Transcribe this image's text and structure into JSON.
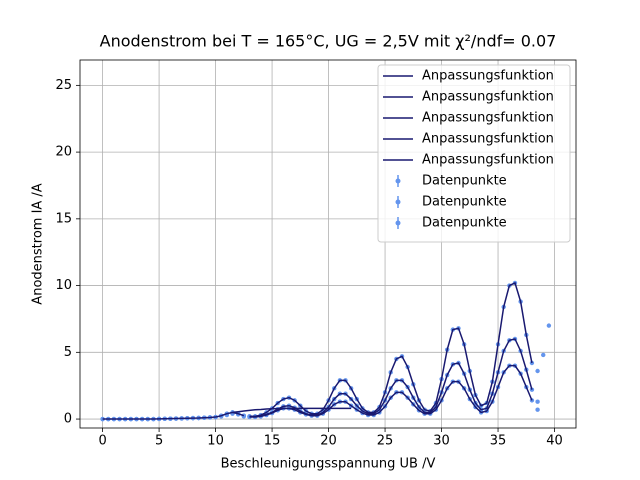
{
  "chart_data": {
    "type": "line",
    "title": "Anodenstrom bei T = 165°C, UG = 2,5V mit χ²/ndf= 0.07",
    "x_label": "Beschleunigungsspannung UB /V",
    "y_label": "Anodenstrom IA /A",
    "xlim": [
      -2.0,
      41.9
    ],
    "ylim": [
      -0.67,
      26.9
    ],
    "xticks": [
      0,
      5,
      10,
      15,
      20,
      25,
      30,
      35,
      40
    ],
    "yticks": [
      0,
      5,
      10,
      15,
      20,
      25
    ],
    "grid": true,
    "legend": "upper right",
    "x": [
      0,
      0.5,
      1,
      1.5,
      2,
      2.5,
      3,
      3.5,
      4,
      4.5,
      5,
      5.5,
      6,
      6.5,
      7,
      7.5,
      8,
      8.5,
      9,
      9.5,
      10,
      10.5,
      11,
      11.5,
      12,
      12.5,
      13,
      13.5,
      14,
      14.5,
      15,
      15.5,
      16,
      16.5,
      17,
      17.5,
      18,
      18.5,
      19,
      19.5,
      20,
      20.5,
      21,
      21.5,
      22,
      22.5,
      23,
      23.5,
      24,
      24.5,
      25,
      25.5,
      26,
      26.5,
      27,
      27.5,
      28,
      28.5,
      29,
      29.5,
      30,
      30.5,
      31,
      31.5,
      32,
      32.5,
      33,
      33.5,
      34,
      34.5,
      35,
      35.5,
      36,
      36.5,
      37,
      37.5,
      38,
      38.5,
      39,
      39.5
    ],
    "series": [
      {
        "name": "Anpassungsfunktion",
        "type": "line",
        "color": "#191970",
        "values": [
          null,
          null,
          null,
          null,
          null,
          null,
          null,
          null,
          null,
          null,
          null,
          null,
          null,
          null,
          null,
          null,
          null,
          null,
          null,
          null,
          null,
          null,
          null,
          null,
          null,
          null,
          0.2,
          0.2,
          0.3,
          0.5,
          0.8,
          1.2,
          1.5,
          1.6,
          1.4,
          1.0,
          0.6,
          0.4,
          0.4,
          0.7,
          1.4,
          2.3,
          2.9,
          2.9,
          2.3,
          1.5,
          0.8,
          0.5,
          0.5,
          0.9,
          2.0,
          3.5,
          4.5,
          4.7,
          3.9,
          2.6,
          1.4,
          0.7,
          0.6,
          1.2,
          3.0,
          5.2,
          6.7,
          6.8,
          5.6,
          3.6,
          1.8,
          1.0,
          1.2,
          2.8,
          5.6,
          8.4,
          10.0,
          10.2,
          8.8,
          6.3,
          4.2,
          null,
          null,
          null
        ]
      },
      {
        "name": "Anpassungsfunktion",
        "type": "line",
        "color": "#191970",
        "values": [
          null,
          null,
          null,
          null,
          null,
          null,
          null,
          null,
          null,
          null,
          null,
          null,
          null,
          null,
          null,
          null,
          null,
          null,
          null,
          null,
          null,
          null,
          null,
          null,
          null,
          null,
          0.2,
          0.2,
          0.25,
          0.35,
          0.5,
          0.75,
          0.95,
          1.0,
          0.85,
          0.6,
          0.4,
          0.3,
          0.3,
          0.5,
          0.9,
          1.5,
          1.9,
          1.9,
          1.5,
          1.0,
          0.6,
          0.4,
          0.4,
          0.7,
          1.4,
          2.3,
          2.9,
          2.9,
          2.4,
          1.6,
          0.9,
          0.5,
          0.5,
          0.9,
          2.0,
          3.3,
          4.1,
          4.2,
          3.4,
          2.2,
          1.2,
          0.7,
          0.8,
          1.9,
          3.5,
          5.1,
          5.9,
          6.0,
          5.1,
          3.7,
          2.2,
          null,
          null,
          null
        ]
      },
      {
        "name": "Anpassungsfunktion",
        "type": "line",
        "color": "#191970",
        "values": [
          null,
          null,
          null,
          null,
          null,
          null,
          null,
          null,
          null,
          null,
          null,
          null,
          null,
          null,
          null,
          null,
          null,
          null,
          null,
          null,
          null,
          null,
          null,
          null,
          null,
          null,
          0.15,
          0.15,
          0.2,
          0.3,
          0.45,
          0.65,
          0.8,
          0.8,
          0.7,
          0.5,
          0.35,
          0.25,
          0.25,
          0.4,
          0.7,
          1.1,
          1.3,
          1.3,
          1.0,
          0.7,
          0.45,
          0.3,
          0.3,
          0.5,
          0.95,
          1.6,
          2.0,
          2.0,
          1.6,
          1.1,
          0.65,
          0.4,
          0.4,
          0.7,
          1.4,
          2.3,
          2.8,
          2.8,
          2.3,
          1.5,
          0.9,
          0.5,
          0.6,
          1.3,
          2.4,
          3.5,
          4.0,
          4.0,
          3.4,
          2.4,
          1.4,
          null,
          null,
          null
        ]
      },
      {
        "name": "Anpassungsfunktion",
        "type": "line",
        "color": "#191970",
        "values": [
          0,
          0,
          0,
          0,
          0,
          0,
          0,
          0,
          0,
          0,
          0.01,
          0.02,
          0.03,
          0.04,
          0.05,
          0.06,
          0.07,
          0.08,
          0.1,
          0.12,
          0.15,
          0.25,
          0.4,
          0.5,
          0.4,
          0.25,
          null,
          null,
          null,
          null,
          null,
          null,
          null,
          null,
          null,
          null,
          null,
          null,
          null,
          null,
          null,
          null,
          null,
          null,
          null,
          null,
          null,
          null,
          null,
          null,
          null,
          null,
          null,
          null,
          null,
          null,
          null,
          null,
          null,
          null,
          null,
          null,
          null,
          null,
          null,
          null,
          null,
          null,
          null,
          null,
          null,
          null,
          null,
          null,
          null,
          null,
          null,
          null,
          null,
          null
        ]
      },
      {
        "name": "Anpassungsfunktion",
        "type": "line",
        "color": "#191970",
        "values": [
          null,
          null,
          null,
          null,
          null,
          null,
          null,
          null,
          null,
          null,
          null,
          null,
          null,
          null,
          null,
          null,
          null,
          null,
          null,
          null,
          null,
          null,
          null,
          0.5,
          0.55,
          0.6,
          0.65,
          0.7,
          0.72,
          0.75,
          0.77,
          0.78,
          0.79,
          0.8,
          0.8,
          0.8,
          0.8,
          0.8,
          0.8,
          0.8,
          0.8,
          0.8,
          0.8,
          0.8,
          0.8,
          null,
          null,
          null,
          null,
          null,
          null,
          null,
          null,
          null,
          null,
          null,
          null,
          null,
          null,
          null,
          null,
          null,
          null,
          null,
          null,
          null,
          null,
          null,
          null,
          null,
          null,
          null,
          null,
          null,
          null,
          null,
          null,
          null,
          null,
          null
        ]
      },
      {
        "name": "Datenpunkte",
        "type": "scatter",
        "color": "#6495ed",
        "values": [
          0,
          0,
          0,
          0,
          0,
          0,
          0,
          0,
          0,
          0,
          0.01,
          0.02,
          0.03,
          0.04,
          0.05,
          0.06,
          0.07,
          0.08,
          0.1,
          0.12,
          0.15,
          0.25,
          0.4,
          0.5,
          0.4,
          0.25,
          0.2,
          0.2,
          0.3,
          0.5,
          0.8,
          1.2,
          1.5,
          1.6,
          1.4,
          1.0,
          0.6,
          0.4,
          0.4,
          0.7,
          1.4,
          2.3,
          2.9,
          2.9,
          2.3,
          1.5,
          0.8,
          0.5,
          0.5,
          0.9,
          2.0,
          3.5,
          4.5,
          4.7,
          3.9,
          2.6,
          1.4,
          0.7,
          0.6,
          1.2,
          3.0,
          5.2,
          6.7,
          6.8,
          5.6,
          3.6,
          1.8,
          1.0,
          1.2,
          2.8,
          5.6,
          8.4,
          10.0,
          10.2,
          8.8,
          6.3,
          4.2,
          3.6,
          4.8,
          7.0
        ]
      },
      {
        "name": "Datenpunkte",
        "type": "scatter",
        "color": "#6495ed",
        "values": [
          0,
          0,
          0,
          0,
          0,
          0,
          0,
          0,
          0,
          0,
          0.01,
          0.02,
          0.03,
          0.04,
          0.05,
          0.06,
          0.07,
          0.08,
          0.1,
          0.12,
          0.15,
          0.25,
          0.4,
          0.5,
          0.4,
          0.25,
          0.2,
          0.2,
          0.25,
          0.35,
          0.5,
          0.75,
          0.95,
          1.0,
          0.85,
          0.6,
          0.4,
          0.3,
          0.3,
          0.5,
          0.9,
          1.5,
          1.9,
          1.9,
          1.5,
          1.0,
          0.6,
          0.4,
          0.4,
          0.7,
          1.4,
          2.3,
          2.9,
          2.9,
          2.4,
          1.6,
          0.9,
          0.5,
          0.5,
          0.9,
          2.0,
          3.3,
          4.1,
          4.2,
          3.4,
          2.2,
          1.2,
          0.7,
          0.8,
          1.9,
          3.5,
          5.1,
          5.9,
          6.0,
          5.1,
          3.7,
          2.2,
          1.3,
          null,
          null
        ]
      },
      {
        "name": "Datenpunkte",
        "type": "scatter",
        "color": "#6495ed",
        "values": [
          0,
          0,
          0,
          0,
          0,
          0,
          0,
          0,
          0,
          0,
          0.01,
          0.02,
          0.03,
          0.04,
          0.05,
          0.06,
          0.07,
          0.08,
          0.1,
          0.12,
          0.15,
          0.2,
          0.3,
          0.4,
          0.35,
          0.2,
          0.15,
          0.15,
          0.2,
          0.3,
          0.45,
          0.65,
          0.8,
          0.8,
          0.7,
          0.5,
          0.35,
          0.25,
          0.25,
          0.4,
          0.7,
          1.1,
          1.3,
          1.3,
          1.0,
          0.7,
          0.45,
          0.3,
          0.3,
          0.5,
          0.95,
          1.6,
          2.0,
          2.0,
          1.6,
          1.1,
          0.65,
          0.4,
          0.4,
          0.7,
          1.4,
          2.3,
          2.8,
          2.8,
          2.3,
          1.5,
          0.9,
          0.5,
          0.6,
          1.3,
          2.4,
          3.5,
          4.0,
          4.0,
          3.4,
          2.4,
          1.4,
          0.7,
          null,
          null
        ]
      }
    ]
  }
}
